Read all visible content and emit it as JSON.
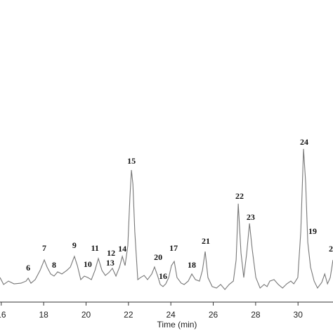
{
  "chart_data": {
    "type": "line",
    "xlabel": "Time (min)",
    "xlim": [
      15.94,
      31.65
    ],
    "ylim": [
      0,
      100
    ],
    "xticks": [
      16,
      18,
      20,
      22,
      24,
      26,
      28,
      30
    ],
    "color": "#777777",
    "x": [
      15.94,
      16.11,
      16.34,
      16.6,
      16.93,
      17.17,
      17.27,
      17.4,
      17.6,
      17.83,
      18.03,
      18.16,
      18.33,
      18.49,
      18.66,
      18.86,
      19.09,
      19.26,
      19.45,
      19.59,
      19.75,
      19.92,
      20.08,
      20.25,
      20.42,
      20.58,
      20.75,
      20.91,
      21.08,
      21.24,
      21.41,
      21.58,
      21.71,
      21.84,
      21.97,
      22.07,
      22.14,
      22.21,
      22.3,
      22.44,
      22.57,
      22.74,
      22.9,
      23.1,
      23.23,
      23.37,
      23.5,
      23.63,
      23.76,
      23.9,
      24.03,
      24.16,
      24.29,
      24.49,
      24.63,
      24.82,
      24.99,
      25.16,
      25.35,
      25.49,
      25.62,
      25.75,
      25.95,
      26.15,
      26.35,
      26.55,
      26.75,
      26.95,
      27.08,
      27.18,
      27.31,
      27.44,
      27.58,
      27.71,
      27.84,
      28.01,
      28.21,
      28.4,
      28.54,
      28.67,
      28.87,
      29.07,
      29.27,
      29.47,
      29.66,
      29.8,
      29.99,
      30.13,
      30.26,
      30.36,
      30.46,
      30.59,
      30.76,
      30.92,
      31.12,
      31.26,
      31.39,
      31.52,
      31.65
    ],
    "values": [
      15.2,
      10.9,
      13.0,
      11.3,
      11.7,
      13.0,
      14.8,
      11.7,
      13.9,
      19.6,
      26.1,
      21.7,
      17.4,
      16.1,
      18.7,
      17.4,
      19.6,
      21.7,
      28.3,
      22.6,
      13.9,
      16.1,
      15.2,
      13.9,
      19.6,
      27.0,
      19.6,
      16.5,
      18.3,
      20.9,
      16.1,
      21.7,
      28.3,
      22.6,
      34.8,
      65.2,
      81.7,
      73.0,
      43.5,
      13.9,
      15.2,
      16.5,
      13.9,
      17.4,
      21.7,
      16.5,
      10.9,
      9.6,
      11.3,
      15.2,
      22.6,
      25.2,
      15.2,
      11.7,
      10.9,
      13.0,
      17.4,
      13.9,
      13.0,
      19.6,
      31.3,
      15.2,
      9.6,
      8.7,
      10.9,
      7.8,
      10.9,
      13.0,
      26.1,
      60.9,
      30.4,
      15.2,
      30.4,
      48.7,
      32.6,
      15.2,
      8.7,
      10.9,
      9.6,
      13.0,
      13.9,
      10.9,
      8.7,
      11.3,
      13.0,
      11.3,
      15.2,
      43.5,
      94.8,
      73.9,
      37.0,
      21.7,
      13.0,
      8.7,
      12.2,
      17.4,
      11.3,
      15.2,
      26.1
    ],
    "annotations": [
      {
        "text": "6",
        "x": 17.27,
        "y": 19.6
      },
      {
        "text": "7",
        "x": 18.03,
        "y": 31.7
      },
      {
        "text": "8",
        "x": 18.49,
        "y": 21.3
      },
      {
        "text": "9",
        "x": 19.45,
        "y": 33.5
      },
      {
        "text": "10",
        "x": 20.08,
        "y": 21.7
      },
      {
        "text": "11",
        "x": 20.42,
        "y": 31.7
      },
      {
        "text": "12",
        "x": 21.18,
        "y": 28.7
      },
      {
        "text": "13",
        "x": 21.14,
        "y": 22.6
      },
      {
        "text": "14",
        "x": 21.71,
        "y": 31.3
      },
      {
        "text": "15",
        "x": 22.14,
        "y": 85.7
      },
      {
        "text": "16",
        "x": 23.63,
        "y": 14.3
      },
      {
        "text": "17",
        "x": 24.13,
        "y": 31.7
      },
      {
        "text": "18",
        "x": 24.99,
        "y": 21.3
      },
      {
        "text": "19",
        "x": 30.69,
        "y": 42.2
      },
      {
        "text": "20",
        "x": 23.4,
        "y": 26.1
      },
      {
        "text": "21",
        "x": 25.65,
        "y": 36.1
      },
      {
        "text": "22",
        "x": 27.24,
        "y": 63.9
      },
      {
        "text": "23",
        "x": 27.77,
        "y": 50.9
      },
      {
        "text": "24",
        "x": 30.29,
        "y": 97.4
      },
      {
        "text": "2",
        "x": 31.55,
        "y": 31.3
      }
    ]
  }
}
